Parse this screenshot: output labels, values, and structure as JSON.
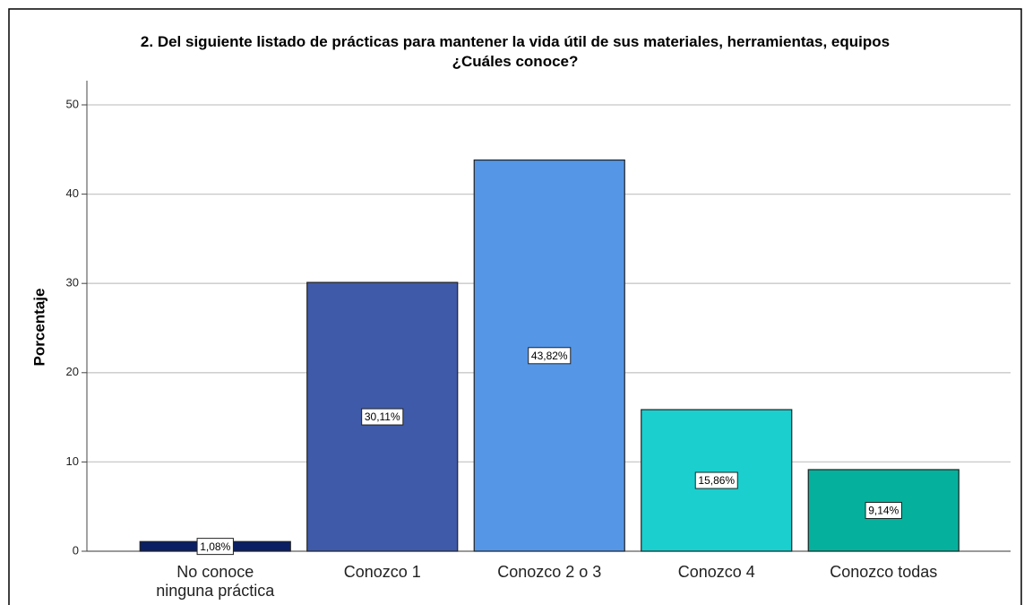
{
  "chart_data": {
    "type": "bar",
    "title": "2. Del siguiente listado de prácticas para mantener la vida útil de sus materiales, herramientas, equipos ¿Cuáles conoce?",
    "y_label": "Porcentaje",
    "categories": [
      "No conoce\nninguna práctica",
      "Conozco 1",
      "Conozco 2 o 3",
      "Conozco 4",
      "Conozco todas"
    ],
    "values": [
      1.08,
      30.11,
      43.82,
      15.86,
      9.14
    ],
    "value_labels": [
      "1,08%",
      "30,11%",
      "43,82%",
      "15,86%",
      "9,14%"
    ],
    "colors": [
      "#0b1f65",
      "#3f5aa8",
      "#5596e6",
      "#1bcfcf",
      "#05b19c"
    ],
    "ylim": [
      0,
      50
    ],
    "yticks": [
      0,
      10,
      20,
      30,
      40,
      50
    ],
    "grid": true
  }
}
